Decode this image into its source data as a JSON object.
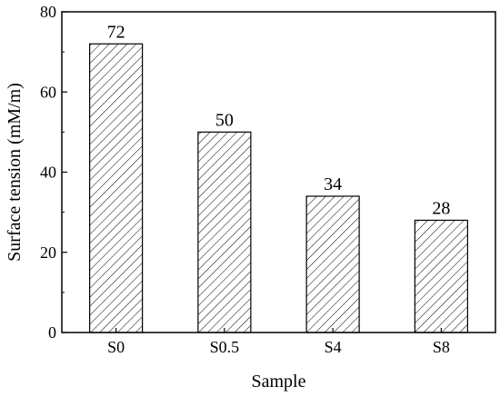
{
  "chart_data": {
    "type": "bar",
    "categories": [
      "S0",
      "S0.5",
      "S4",
      "S8"
    ],
    "values": [
      72,
      50,
      34,
      28
    ],
    "data_labels": [
      "72",
      "50",
      "34",
      "28"
    ],
    "title": "",
    "xlabel": "Sample",
    "ylabel": "Surface tension (mM/m)",
    "ylim": [
      0,
      80
    ],
    "yticks": [
      0,
      20,
      40,
      60,
      80
    ],
    "grid": false,
    "bar_fill": "hatched",
    "colors": {
      "axis": "#000000",
      "bar_edge": "#000000",
      "hatch": "#000000",
      "background": "#ffffff"
    }
  }
}
